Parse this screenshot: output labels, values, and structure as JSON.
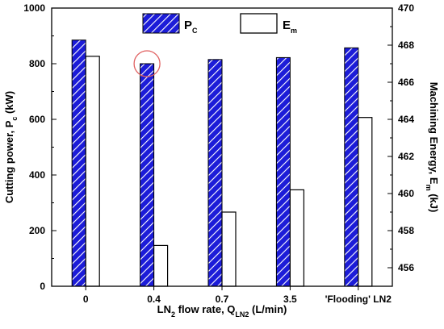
{
  "chart_data": {
    "type": "bar",
    "categories": [
      "0",
      "0.4",
      "0.7",
      "3.5",
      "'Flooding' LN2"
    ],
    "xlabel": {
      "main": "LN",
      "sub": "2",
      "mid": " flow rate, Q",
      "sub2": "LN",
      "sub3": "2",
      "end": " (L/min)"
    },
    "ylabel_left": {
      "main": "Cutting power, P",
      "sub": "c",
      "end": " (kW)"
    },
    "ylabel_right": {
      "main": "Machining Energy, E",
      "sub": "m",
      "end": " (kJ)"
    },
    "ylim_left": [
      0,
      1000
    ],
    "ylim_right": [
      455,
      470
    ],
    "yticks_left": [
      "0",
      "200",
      "400",
      "600",
      "800",
      "1000"
    ],
    "yticks_right": [
      "456",
      "458",
      "460",
      "462",
      "464",
      "466",
      "468",
      "470"
    ],
    "series": [
      {
        "name": "P",
        "name_sub": "C",
        "axis": "left",
        "fill": "hatched",
        "color": "#1c1cd8",
        "values": [
          885,
          800,
          815,
          822,
          857
        ]
      },
      {
        "name": "E",
        "name_sub": "m",
        "axis": "right",
        "fill": "white",
        "color": "#000000",
        "values": [
          467.4,
          457.2,
          459.0,
          460.2,
          464.1
        ]
      }
    ],
    "annotation": {
      "type": "circle",
      "color": "#e06060",
      "category_index": 1,
      "series_index": 0
    },
    "grid": false,
    "legend_position": "top-center"
  }
}
